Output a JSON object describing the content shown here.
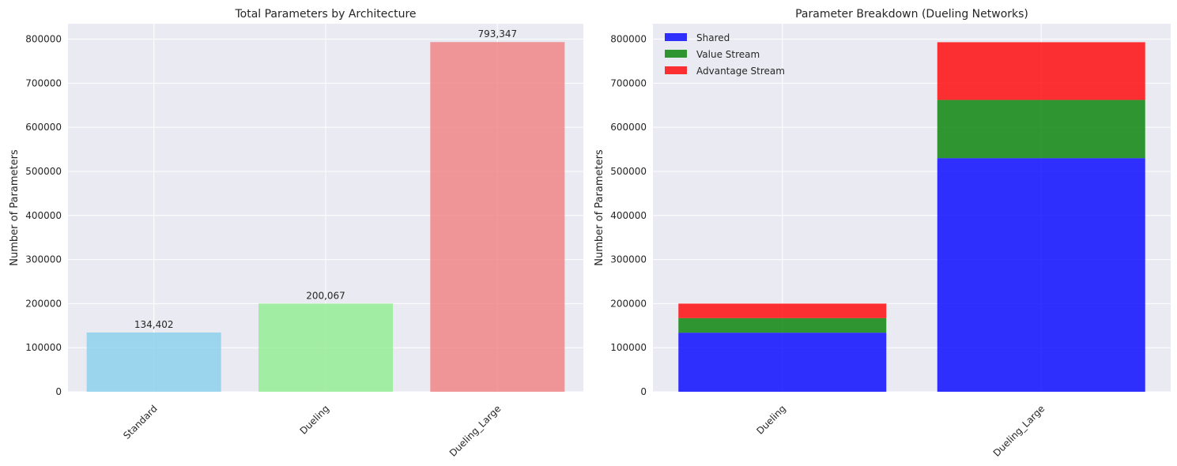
{
  "chart_data": [
    {
      "type": "bar",
      "title": "Total Parameters by Architecture",
      "xlabel": "",
      "ylabel": "Number of Parameters",
      "categories": [
        "Standard",
        "Dueling",
        "Dueling_Large"
      ],
      "values": [
        134402,
        200067,
        793347
      ],
      "data_labels": [
        "134,402",
        "200,067",
        "793,347"
      ],
      "colors": [
        "#87CEEB",
        "#90EE90",
        "#F08080"
      ],
      "ylim": [
        0,
        835000
      ],
      "yticks": [
        0,
        100000,
        200000,
        300000,
        400000,
        500000,
        600000,
        700000,
        800000
      ],
      "ytick_labels": [
        "0",
        "100000",
        "200000",
        "300000",
        "400000",
        "500000",
        "600000",
        "700000",
        "800000"
      ],
      "grid": true
    },
    {
      "type": "bar",
      "stacked": true,
      "title": "Parameter Breakdown (Dueling Networks)",
      "xlabel": "",
      "ylabel": "Number of Parameters",
      "categories": [
        "Dueling",
        "Dueling_Large"
      ],
      "series": [
        {
          "name": "Shared",
          "values": [
            134000,
            530000
          ],
          "color": "#0000FF"
        },
        {
          "name": "Value Stream",
          "values": [
            33000,
            132000
          ],
          "color": "#008000"
        },
        {
          "name": "Advantage Stream",
          "values": [
            33000,
            131000
          ],
          "color": "#FF0000"
        }
      ],
      "ylim": [
        0,
        835000
      ],
      "yticks": [
        0,
        100000,
        200000,
        300000,
        400000,
        500000,
        600000,
        700000,
        800000
      ],
      "ytick_labels": [
        "0",
        "100000",
        "200000",
        "300000",
        "400000",
        "500000",
        "600000",
        "700000",
        "800000"
      ],
      "legend": "top-left",
      "grid": true
    }
  ],
  "style": {
    "plot_bg": "#EAEAF2",
    "grid_color": "#FFFFFF",
    "text_color": "#262626"
  }
}
